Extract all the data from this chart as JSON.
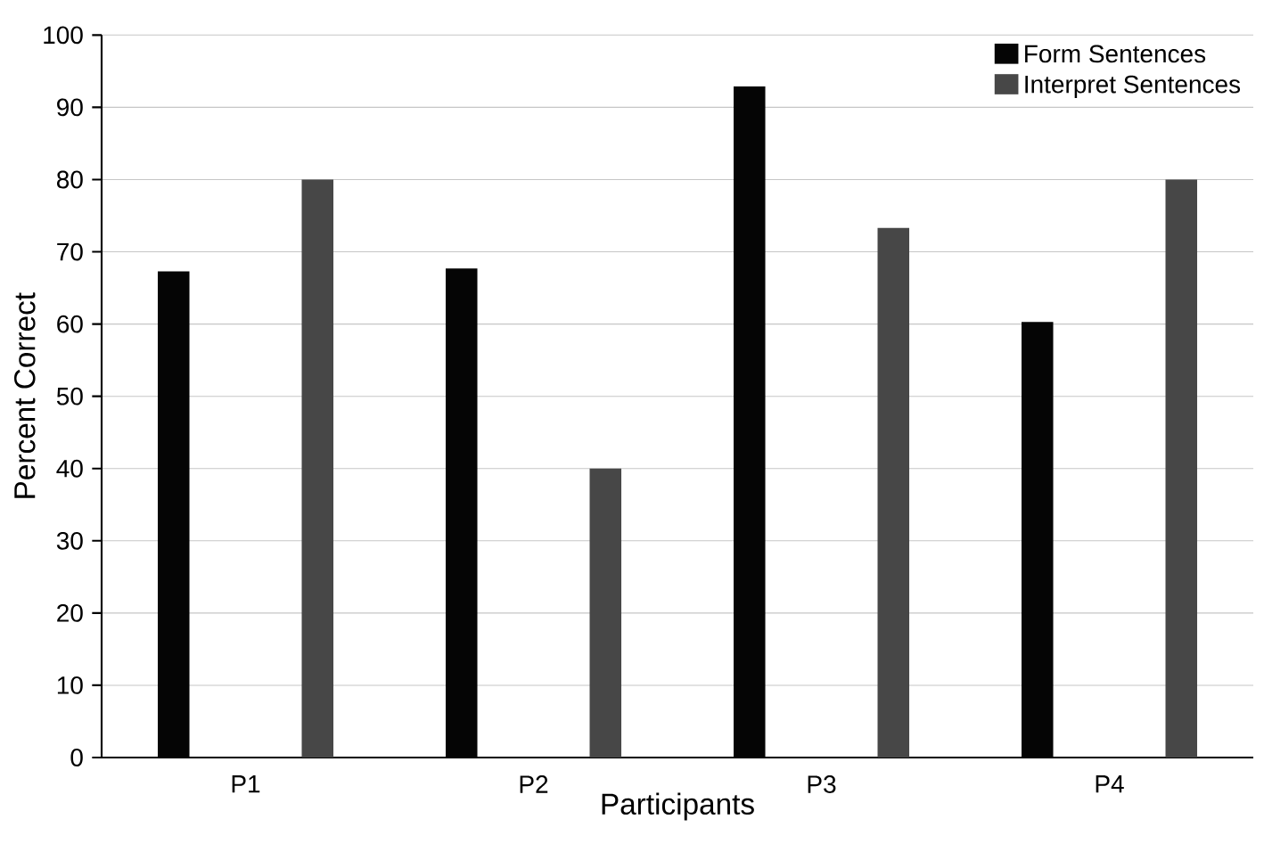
{
  "chart_data": {
    "type": "bar",
    "xlabel": "Participants",
    "ylabel": "Percent Correct",
    "categories": [
      "P1",
      "P2",
      "P3",
      "P4"
    ],
    "series": [
      {
        "name": "Form Sentences",
        "color": "#050505",
        "values": [
          67.3,
          67.7,
          92.9,
          60.3
        ]
      },
      {
        "name": "Interpret Sentences",
        "color": "#474747",
        "values": [
          80,
          40,
          73.3,
          80
        ]
      }
    ],
    "ylim": [
      0,
      100
    ],
    "yticks": [
      0,
      10,
      20,
      30,
      40,
      50,
      60,
      70,
      80,
      90,
      100
    ],
    "grid": "y",
    "legend": "top right"
  }
}
